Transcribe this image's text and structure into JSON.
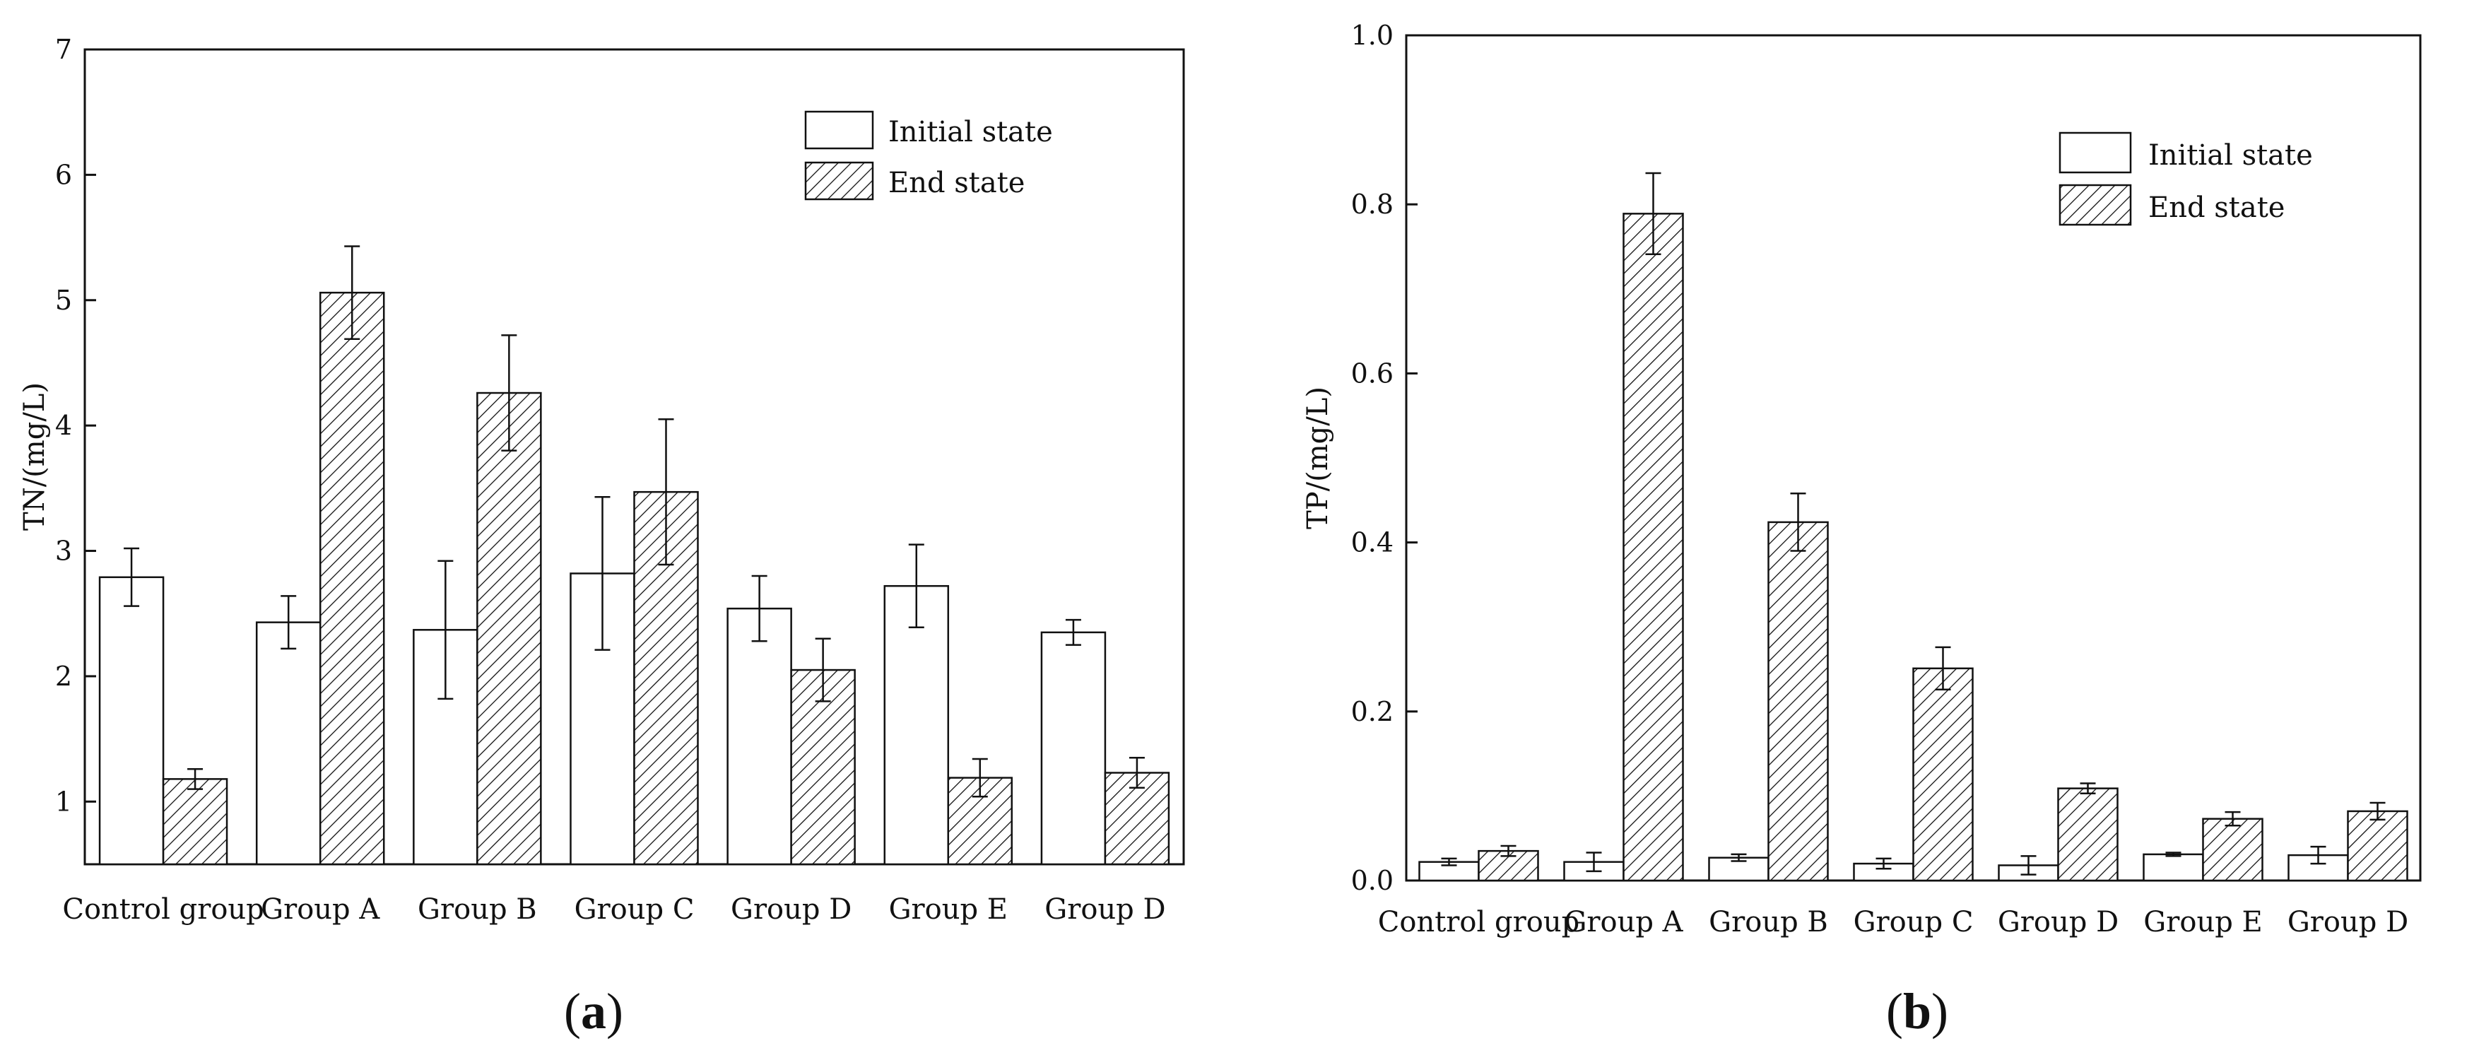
{
  "chart_data": [
    {
      "type": "bar",
      "panel_label_open": "(",
      "panel_label_letter": "a",
      "panel_label_close": ")",
      "ylabel": "TN/(mg/L)",
      "xlabel": "",
      "ylim": [
        0.5,
        7
      ],
      "yticks": [
        1,
        2,
        3,
        4,
        5,
        6,
        7
      ],
      "ytick_labels": [
        "1",
        "2",
        "3",
        "4",
        "5",
        "6",
        "7"
      ],
      "categories": [
        "Control group",
        "Group A",
        "Group B",
        "Group C",
        "Group D",
        "Group E",
        "Group D"
      ],
      "legend_position": "top-right",
      "series": [
        {
          "name": "Initial state",
          "pattern": "none",
          "values": [
            2.79,
            2.43,
            2.37,
            2.82,
            2.54,
            2.72,
            2.35
          ],
          "errors": [
            0.23,
            0.21,
            0.55,
            0.61,
            0.26,
            0.33,
            0.1
          ]
        },
        {
          "name": "End state",
          "pattern": "hatch",
          "values": [
            1.18,
            5.06,
            4.26,
            3.47,
            2.05,
            1.19,
            1.23
          ],
          "errors": [
            0.08,
            0.37,
            0.46,
            0.58,
            0.25,
            0.15,
            0.12
          ]
        }
      ]
    },
    {
      "type": "bar",
      "panel_label_open": "(",
      "panel_label_letter": "b",
      "panel_label_close": ")",
      "ylabel": "TP/(mg/L)",
      "xlabel": "",
      "ylim": [
        0,
        1.0
      ],
      "yticks": [
        0,
        0.2,
        0.4,
        0.6,
        0.8,
        1.0
      ],
      "ytick_labels": [
        "0.0",
        "0.2",
        "0.4",
        "0.6",
        "0.8",
        "1.0"
      ],
      "categories": [
        "Control group",
        "Group A",
        "Group B",
        "Group C",
        "Group D",
        "Group E",
        "Group D"
      ],
      "legend_position": "top-right",
      "series": [
        {
          "name": "Initial state",
          "pattern": "none",
          "values": [
            0.022,
            0.022,
            0.027,
            0.02,
            0.018,
            0.031,
            0.03
          ],
          "errors": [
            0.004,
            0.011,
            0.004,
            0.006,
            0.011,
            0.002,
            0.01
          ]
        },
        {
          "name": "End state",
          "pattern": "hatch",
          "values": [
            0.035,
            0.789,
            0.424,
            0.251,
            0.109,
            0.073,
            0.082
          ],
          "errors": [
            0.006,
            0.048,
            0.034,
            0.025,
            0.006,
            0.008,
            0.01
          ]
        }
      ]
    }
  ]
}
